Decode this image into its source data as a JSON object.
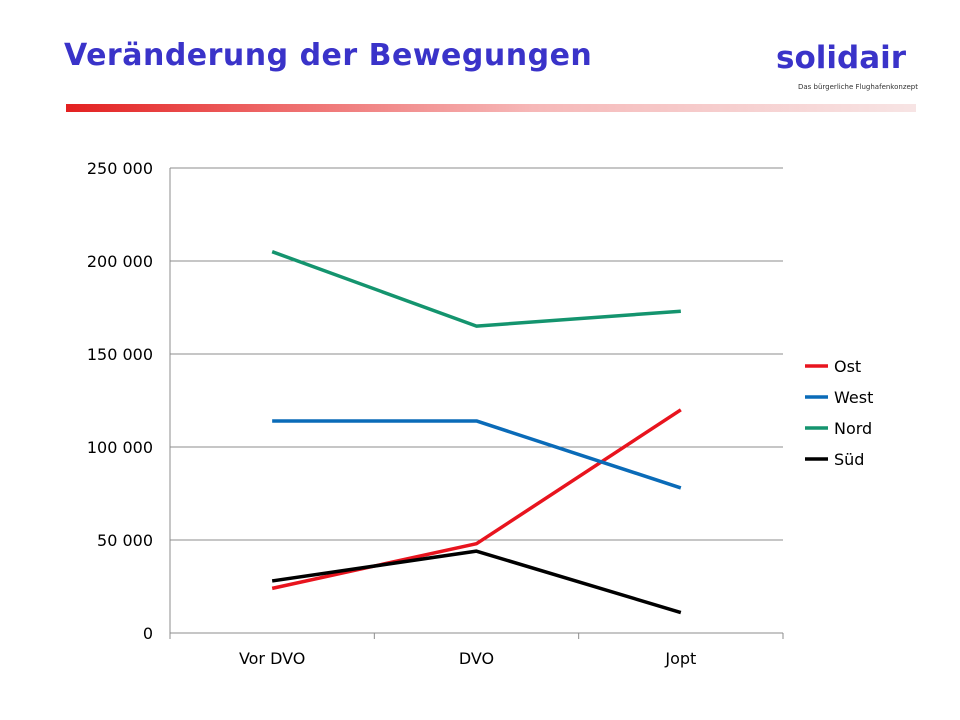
{
  "header": {
    "title": "Veränderung der Bewegungen",
    "brand": "solidair",
    "tagline": "Das bürgerliche Flughafenkonzept",
    "accent_color": "#e32020",
    "title_color": "#3a33c9"
  },
  "chart_data": {
    "type": "line",
    "title": "",
    "xlabel": "",
    "ylabel": "",
    "categories": [
      "Vor DVO",
      "DVO",
      "Jopt"
    ],
    "ylim": [
      0,
      250000
    ],
    "yticks": [
      0,
      50000,
      100000,
      150000,
      200000,
      250000
    ],
    "ytick_labels": [
      "0",
      "50 000",
      "100 000",
      "150 000",
      "200 000",
      "250 000"
    ],
    "grid": true,
    "legend_position": "right",
    "series": [
      {
        "name": "Ost",
        "color": "#e8141e",
        "values": [
          24000,
          48000,
          120000
        ]
      },
      {
        "name": "West",
        "color": "#0a6bb8",
        "values": [
          114000,
          114000,
          78000
        ]
      },
      {
        "name": "Nord",
        "color": "#14946e",
        "values": [
          205000,
          165000,
          173000
        ]
      },
      {
        "name": "Süd",
        "color": "#000000",
        "values": [
          28000,
          44000,
          11000
        ]
      }
    ]
  }
}
